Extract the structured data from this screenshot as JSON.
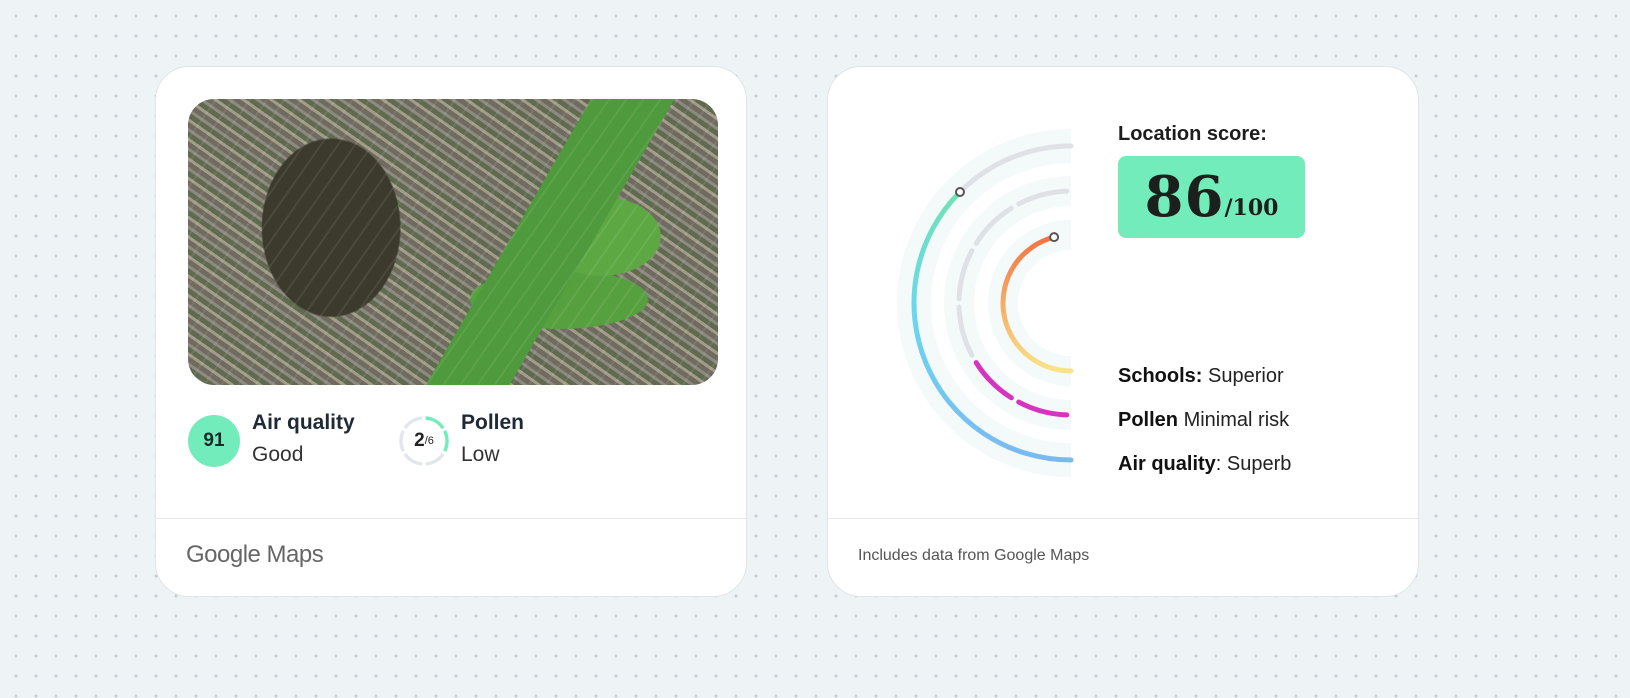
{
  "left_card": {
    "air_quality": {
      "value": "91",
      "label": "Air quality",
      "status": "Good",
      "color": "#73ecbb"
    },
    "pollen": {
      "value": "2",
      "max": "/6",
      "label": "Pollen",
      "status": "Low",
      "level": 2,
      "level_max": 6
    },
    "footer": "Google Maps"
  },
  "right_card": {
    "title": "Location score:",
    "score": "86",
    "score_max": "/100",
    "rows": [
      {
        "key": "Schools:",
        "value": "Superior"
      },
      {
        "key": "Pollen",
        "value": "Minimal risk"
      },
      {
        "key": "Air quality",
        "value": ": Superb"
      }
    ],
    "gauges": {
      "air_quality_fraction": 0.75,
      "pollen_segments_filled": 2,
      "pollen_segments_total": 6,
      "schools_fraction": 0.92,
      "colors": {
        "air_start": "#79b9f3",
        "air_mid": "#6ad8ee",
        "air_end": "#6fe3b4",
        "pollen": "#d633c0",
        "schools_start": "#f8e38a",
        "schools_end": "#f27544",
        "track": "#dfe1e7"
      }
    },
    "footer": "Includes data from Google Maps"
  }
}
